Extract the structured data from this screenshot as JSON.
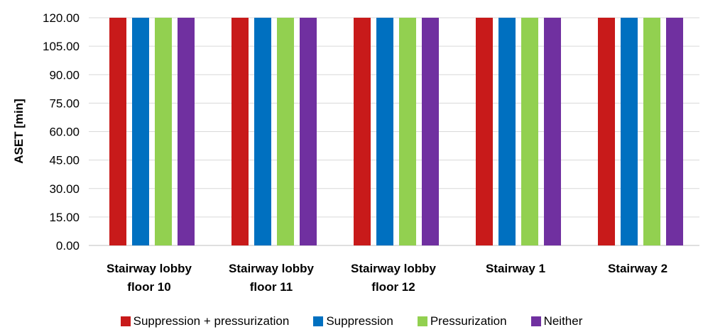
{
  "chart_data": {
    "type": "bar",
    "categories": [
      [
        "Stairway lobby",
        "floor 10"
      ],
      [
        "Stairway lobby",
        "floor 11"
      ],
      [
        "Stairway lobby",
        "floor 12"
      ],
      [
        "Stairway 1"
      ],
      [
        "Stairway 2"
      ]
    ],
    "series": [
      {
        "name": "Suppression + pressurization",
        "color": "#c81a1a",
        "values": [
          120,
          120,
          120,
          120,
          120
        ]
      },
      {
        "name": "Suppression",
        "color": "#0070c0",
        "values": [
          120,
          120,
          120,
          120,
          120
        ]
      },
      {
        "name": "Pressurization",
        "color": "#92d050",
        "values": [
          120,
          120,
          120,
          120,
          120
        ]
      },
      {
        "name": "Neither",
        "color": "#7030a0",
        "values": [
          120,
          120,
          120,
          120,
          120
        ]
      }
    ],
    "title": "",
    "xlabel": "",
    "ylabel": "ASET [min]",
    "ylim": [
      0,
      120
    ],
    "yticks": [
      "0.00",
      "15.00",
      "30.00",
      "45.00",
      "60.00",
      "75.00",
      "90.00",
      "105.00",
      "120.00"
    ],
    "grid": true,
    "legend": "bottom"
  }
}
